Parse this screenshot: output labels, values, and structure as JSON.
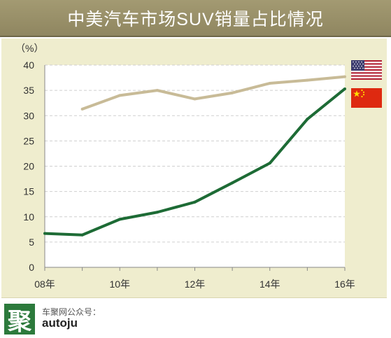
{
  "header": {
    "title": "中美汽车市场SUV销量占比情况"
  },
  "chart_data": {
    "type": "line",
    "title": "中美汽车市场SUV销量占比情况",
    "ylabel": "（%）",
    "xlabel": "",
    "ylim": [
      0,
      40
    ],
    "xlim": [
      2008,
      2016
    ],
    "y_ticks": [
      0,
      5,
      10,
      15,
      20,
      25,
      30,
      35,
      40
    ],
    "x_ticks": [
      {
        "value": 2008,
        "label": "08年"
      },
      {
        "value": 2010,
        "label": "10年"
      },
      {
        "value": 2012,
        "label": "12年"
      },
      {
        "value": 2014,
        "label": "14年"
      },
      {
        "value": 2016,
        "label": "16年"
      }
    ],
    "grid": "horizontal dashed",
    "legend": "flags, top-right",
    "series": [
      {
        "flag": "us-flag-icon",
        "color": "#c8bb97",
        "x": [
          2009,
          2010,
          2011,
          2012,
          2013,
          2014,
          2015,
          2016
        ],
        "values": [
          31.3,
          34.0,
          35.0,
          33.3,
          34.5,
          36.4,
          37.0,
          37.7
        ]
      },
      {
        "flag": "china-flag-icon",
        "color": "#1d6b35",
        "x": [
          2008,
          2009,
          2010,
          2011,
          2012,
          2013,
          2014,
          2015,
          2016
        ],
        "values": [
          6.7,
          6.4,
          9.5,
          10.9,
          12.9,
          16.7,
          20.6,
          29.3,
          35.3
        ]
      }
    ]
  },
  "footer": {
    "logo_char": "聚",
    "caption": "车聚网公众号：",
    "handle": "autoju"
  }
}
